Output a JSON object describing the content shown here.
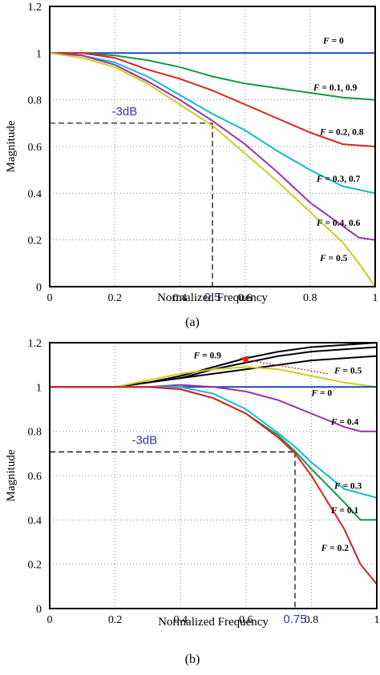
{
  "chart_data": [
    {
      "type": "line",
      "caption": "(a)",
      "xlabel": "Normalized Frequency",
      "ylabel": "Magnitude",
      "xlim": [
        0,
        1
      ],
      "ylim": [
        0,
        1.2
      ],
      "xticks": [
        0,
        0.2,
        0.4,
        0.6,
        0.8,
        1
      ],
      "xtick_labels": [
        "0",
        "0.2",
        "0.4",
        "0.6",
        "0.8",
        "1"
      ],
      "yticks": [
        0,
        0.2,
        0.4,
        0.6,
        0.8,
        1,
        1.2
      ],
      "ytick_labels": [
        "0",
        "0.2",
        "0.4",
        "0.6",
        "0.8",
        "1",
        "1.2"
      ],
      "grid": true,
      "annotations": {
        "db_label": "-3dB",
        "db_level": 0.7,
        "cutoff_x": 0.5,
        "cutoff_label": "0.5"
      },
      "series": [
        {
          "label": "0",
          "color": "#2244bb",
          "label_at": [
            0.84,
            1.04
          ],
          "x": [
            0,
            1
          ],
          "y": [
            1,
            1
          ]
        },
        {
          "label": "0.1, 0.9",
          "color": "#119944",
          "label_at": [
            0.81,
            0.84
          ],
          "x": [
            0,
            0.1,
            0.2,
            0.3,
            0.4,
            0.5,
            0.6,
            0.7,
            0.8,
            0.9,
            1.0
          ],
          "y": [
            1,
            1,
            0.99,
            0.97,
            0.94,
            0.9,
            0.87,
            0.85,
            0.83,
            0.81,
            0.8
          ]
        },
        {
          "label": "0.2, 0.8",
          "color": "#dd2222",
          "label_at": [
            0.83,
            0.65
          ],
          "x": [
            0,
            0.1,
            0.2,
            0.3,
            0.4,
            0.5,
            0.6,
            0.7,
            0.8,
            0.9,
            1.0
          ],
          "y": [
            1,
            1,
            0.98,
            0.93,
            0.89,
            0.84,
            0.78,
            0.72,
            0.66,
            0.61,
            0.6
          ]
        },
        {
          "label": "0.3, 0.7",
          "color": "#11bbcc",
          "label_at": [
            0.82,
            0.45
          ],
          "x": [
            0,
            0.1,
            0.2,
            0.3,
            0.4,
            0.5,
            0.6,
            0.7,
            0.8,
            0.9,
            1.0
          ],
          "y": [
            1,
            0.99,
            0.96,
            0.9,
            0.82,
            0.74,
            0.67,
            0.58,
            0.5,
            0.43,
            0.4
          ]
        },
        {
          "label": "0.4, 0.6",
          "color": "#9933aa",
          "label_at": [
            0.82,
            0.26
          ],
          "x": [
            0,
            0.1,
            0.2,
            0.3,
            0.4,
            0.5,
            0.6,
            0.7,
            0.8,
            0.9,
            0.95,
            1.0
          ],
          "y": [
            1,
            0.99,
            0.95,
            0.88,
            0.8,
            0.71,
            0.61,
            0.49,
            0.36,
            0.26,
            0.21,
            0.2
          ]
        },
        {
          "label": "0.5",
          "color": "#cccc22",
          "label_at": [
            0.83,
            0.11
          ],
          "x": [
            0,
            0.1,
            0.2,
            0.3,
            0.4,
            0.5,
            0.6,
            0.7,
            0.8,
            0.9,
            0.95,
            1.0
          ],
          "y": [
            1,
            0.98,
            0.94,
            0.87,
            0.78,
            0.69,
            0.57,
            0.45,
            0.32,
            0.19,
            0.1,
            0.0
          ]
        }
      ]
    },
    {
      "type": "line",
      "caption": "(b)",
      "xlabel": "Normalized Frequency",
      "ylabel": "Magnitude",
      "xlim": [
        0,
        1
      ],
      "ylim": [
        0,
        1.2
      ],
      "xticks": [
        0,
        0.2,
        0.4,
        0.6,
        0.8,
        1
      ],
      "xtick_labels": [
        "0",
        "0.2",
        "0.4",
        "0.6",
        "0.8",
        "1"
      ],
      "yticks": [
        0,
        0.2,
        0.4,
        0.6,
        0.8,
        1,
        1.2
      ],
      "ytick_labels": [
        "0",
        "0.2",
        "0.4",
        "0.6",
        "0.8",
        "1",
        "1.2"
      ],
      "grid": true,
      "annotations": {
        "db_label": "-3dB",
        "db_level": 0.707,
        "cutoff_x": 0.75,
        "cutoff_label": "0.75",
        "arrow": {
          "from": [
            0.85,
            1.06
          ],
          "to": [
            0.58,
            1.13
          ],
          "color": "#dd2222"
        }
      },
      "series": [
        {
          "label": "0.9",
          "color": "#000000",
          "label_at": [
            0.44,
            1.13
          ],
          "x": [
            0,
            0.2,
            0.3,
            0.4,
            0.5,
            0.6,
            0.7,
            0.8,
            0.9,
            1.0
          ],
          "y": [
            1,
            1,
            1.02,
            1.05,
            1.09,
            1.13,
            1.16,
            1.18,
            1.19,
            1.2
          ]
        },
        {
          "label": "",
          "color": "#000000",
          "x": [
            0,
            0.2,
            0.3,
            0.4,
            0.5,
            0.6,
            0.7,
            0.8,
            0.9,
            1.0
          ],
          "y": [
            1,
            1,
            1.02,
            1.04,
            1.08,
            1.11,
            1.14,
            1.16,
            1.17,
            1.18
          ]
        },
        {
          "label": "",
          "color": "#000000",
          "x": [
            0,
            0.2,
            0.3,
            0.4,
            0.5,
            0.6,
            0.7,
            0.8,
            0.9,
            1.0
          ],
          "y": [
            1,
            1,
            1.02,
            1.04,
            1.06,
            1.08,
            1.1,
            1.12,
            1.13,
            1.14
          ]
        },
        {
          "label": "0.5",
          "color": "#cccc22",
          "label_at": [
            0.87,
            1.06
          ],
          "x": [
            0,
            0.2,
            0.3,
            0.4,
            0.5,
            0.6,
            0.7,
            0.8,
            0.9,
            1.0
          ],
          "y": [
            1,
            1,
            1.03,
            1.06,
            1.08,
            1.09,
            1.08,
            1.05,
            1.02,
            1.0
          ]
        },
        {
          "label": "0",
          "color": "#2244bb",
          "label_at": [
            0.8,
            0.96
          ],
          "x": [
            0,
            1
          ],
          "y": [
            1,
            1
          ]
        },
        {
          "label": "0.4",
          "color": "#9933aa",
          "label_at": [
            0.86,
            0.83
          ],
          "x": [
            0,
            0.3,
            0.4,
            0.5,
            0.6,
            0.7,
            0.8,
            0.9,
            0.95,
            1.0
          ],
          "y": [
            1,
            1.0,
            1.01,
            1.0,
            0.98,
            0.94,
            0.88,
            0.82,
            0.8,
            0.8
          ]
        },
        {
          "label": "0.3",
          "color": "#11bbcc",
          "label_at": [
            0.87,
            0.54
          ],
          "x": [
            0,
            0.3,
            0.4,
            0.5,
            0.6,
            0.7,
            0.75,
            0.8,
            0.9,
            1.0
          ],
          "y": [
            1,
            1.0,
            1.0,
            0.97,
            0.9,
            0.79,
            0.73,
            0.66,
            0.54,
            0.5
          ]
        },
        {
          "label": "0.1",
          "color": "#119944",
          "label_at": [
            0.86,
            0.43
          ],
          "x": [
            0,
            0.3,
            0.4,
            0.5,
            0.6,
            0.7,
            0.75,
            0.8,
            0.9,
            0.95,
            1.0
          ],
          "y": [
            1,
            1.0,
            0.99,
            0.95,
            0.88,
            0.78,
            0.71,
            0.63,
            0.48,
            0.4,
            0.4
          ]
        },
        {
          "label": "0.2",
          "color": "#dd2222",
          "label_at": [
            0.83,
            0.26
          ],
          "x": [
            0,
            0.3,
            0.4,
            0.5,
            0.6,
            0.7,
            0.75,
            0.8,
            0.9,
            0.95,
            1.0
          ],
          "y": [
            1,
            1.0,
            0.99,
            0.95,
            0.88,
            0.77,
            0.7,
            0.6,
            0.36,
            0.2,
            0.11
          ]
        }
      ]
    }
  ]
}
